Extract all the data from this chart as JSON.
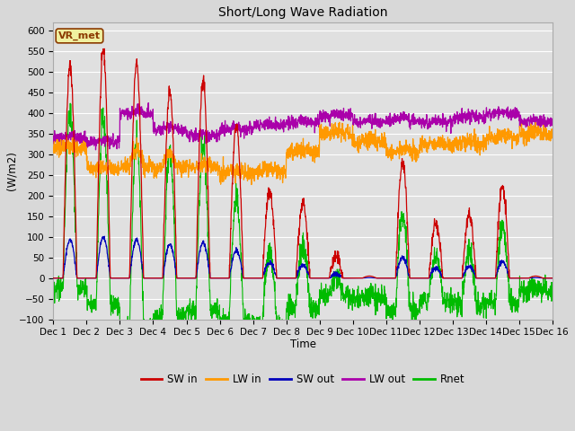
{
  "title": "Short/Long Wave Radiation",
  "xlabel": "Time",
  "ylabel": "(W/m2)",
  "ylim": [
    -100,
    620
  ],
  "yticks": [
    -100,
    -50,
    0,
    50,
    100,
    150,
    200,
    250,
    300,
    350,
    400,
    450,
    500,
    550,
    600
  ],
  "xtick_labels": [
    "Dec 1",
    "Dec 2",
    "Dec 3",
    "Dec 4",
    "Dec 5",
    "Dec 6",
    "Dec 7",
    "Dec 8",
    "Dec 9",
    "Dec 10",
    "Dec 11",
    "Dec 12",
    "Dec 13",
    "Dec 14",
    "Dec 15",
    "Dec 16"
  ],
  "colors": {
    "SW_in": "#cc0000",
    "LW_in": "#ff9900",
    "SW_out": "#0000bb",
    "LW_out": "#aa00aa",
    "Rnet": "#00bb00"
  },
  "legend_labels": [
    "SW in",
    "LW in",
    "SW out",
    "LW out",
    "Rnet"
  ],
  "fig_bg_color": "#d8d8d8",
  "plot_bg_color": "#e0e0e0",
  "annotation": "VR_met",
  "n_days": 15,
  "points_per_day": 144
}
